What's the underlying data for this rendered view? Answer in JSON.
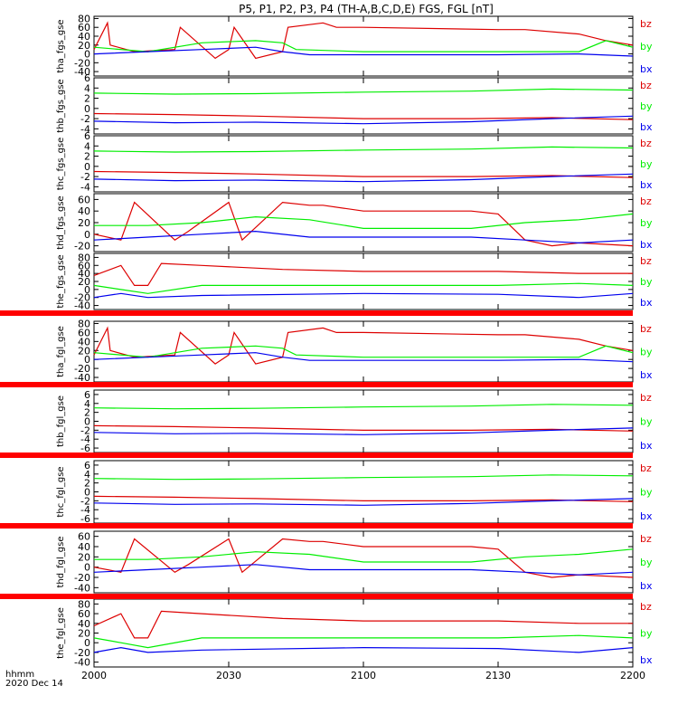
{
  "chart_data": {
    "type": "line",
    "title": "P5, P1, P2, P3, P4 (TH-A,B,C,D,E) FGS, FGL [nT]",
    "x_tick_labels": [
      "2000",
      "2030",
      "2100",
      "2130",
      "2200"
    ],
    "x_time_hours": [
      20.0,
      20.5,
      21.0,
      21.5,
      22.0
    ],
    "xlim_hours": [
      20.0,
      22.0
    ],
    "x_axis_annotation": {
      "line1": "hhmm",
      "line2": "2020 Dec 14"
    },
    "colors": {
      "bz": "#dd0000",
      "by": "#00ee00",
      "bx": "#0000ee",
      "bar": "#ff0000"
    },
    "panels": [
      {
        "ylabel": "tha_fgs_gse",
        "ylim": [
          -50,
          85
        ],
        "yticks": [
          80,
          60,
          40,
          20,
          0,
          -20,
          -40
        ],
        "legend": [
          "bz",
          "by",
          "bx"
        ],
        "series": [
          {
            "name": "bz",
            "x": [
              20.0,
              20.05,
              20.06,
              20.15,
              20.3,
              20.32,
              20.45,
              20.5,
              20.52,
              20.6,
              20.7,
              20.72,
              20.85,
              20.9,
              21.0,
              21.5,
              21.6,
              21.8,
              21.9,
              22.0
            ],
            "y": [
              10,
              70,
              20,
              5,
              10,
              60,
              -10,
              10,
              60,
              -10,
              5,
              60,
              70,
              60,
              60,
              55,
              55,
              45,
              30,
              20
            ]
          },
          {
            "name": "by",
            "x": [
              20.0,
              20.2,
              20.4,
              20.6,
              20.7,
              20.75,
              21.0,
              21.5,
              21.8,
              21.9,
              22.0
            ],
            "y": [
              15,
              5,
              25,
              30,
              25,
              10,
              5,
              5,
              5,
              30,
              15
            ]
          },
          {
            "name": "bx",
            "x": [
              20.0,
              20.2,
              20.4,
              20.6,
              20.7,
              20.8,
              21.0,
              21.5,
              21.8,
              22.0
            ],
            "y": [
              0,
              5,
              10,
              15,
              5,
              -2,
              -2,
              -2,
              0,
              -5
            ]
          }
        ]
      },
      {
        "ylabel": "thb_fgs_gse",
        "ylim": [
          -5,
          6
        ],
        "yticks": [
          6,
          4,
          2,
          0,
          -2,
          -4
        ],
        "legend": [
          "bz",
          "by",
          "bx"
        ],
        "series": [
          {
            "name": "bz",
            "x": [
              20.0,
              20.3,
              20.6,
              21.0,
              21.4,
              21.7,
              22.0
            ],
            "y": [
              -1,
              -1.2,
              -1.5,
              -2,
              -2,
              -1.8,
              -2.2
            ]
          },
          {
            "name": "by",
            "x": [
              20.0,
              20.3,
              20.6,
              21.0,
              21.4,
              21.7,
              22.0
            ],
            "y": [
              3,
              2.8,
              2.9,
              3.2,
              3.4,
              3.8,
              3.6
            ]
          },
          {
            "name": "bx",
            "x": [
              20.0,
              20.3,
              20.6,
              21.0,
              21.4,
              21.7,
              22.0
            ],
            "y": [
              -2.5,
              -2.8,
              -2.7,
              -3,
              -2.6,
              -2,
              -1.5
            ]
          }
        ]
      },
      {
        "ylabel": "thc_fgs_gse",
        "ylim": [
          -5,
          6
        ],
        "yticks": [
          6,
          4,
          2,
          0,
          -2,
          -4
        ],
        "legend": [
          "bz",
          "by",
          "bx"
        ],
        "series": [
          {
            "name": "bz",
            "x": [
              20.0,
              20.3,
              20.6,
              21.0,
              21.4,
              21.7,
              22.0
            ],
            "y": [
              -1,
              -1.2,
              -1.5,
              -2,
              -2,
              -1.8,
              -2.2
            ]
          },
          {
            "name": "by",
            "x": [
              20.0,
              20.3,
              20.6,
              21.0,
              21.4,
              21.7,
              22.0
            ],
            "y": [
              3,
              2.8,
              2.9,
              3.2,
              3.4,
              3.8,
              3.6
            ]
          },
          {
            "name": "bx",
            "x": [
              20.0,
              20.3,
              20.6,
              21.0,
              21.4,
              21.7,
              22.0
            ],
            "y": [
              -2.5,
              -2.8,
              -2.7,
              -3,
              -2.6,
              -2,
              -1.5
            ]
          }
        ]
      },
      {
        "ylabel": "thd_fgs_gse",
        "ylim": [
          -30,
          70
        ],
        "yticks": [
          60,
          40,
          20,
          0,
          -20
        ],
        "legend": [
          "bz",
          "by",
          "bx"
        ],
        "series": [
          {
            "name": "bz",
            "x": [
              20.0,
              20.1,
              20.15,
              20.3,
              20.35,
              20.5,
              20.55,
              20.7,
              20.8,
              20.85,
              21.0,
              21.4,
              21.5,
              21.6,
              21.7,
              21.8,
              22.0
            ],
            "y": [
              0,
              -10,
              55,
              -10,
              5,
              55,
              -10,
              55,
              50,
              50,
              40,
              40,
              35,
              -10,
              -20,
              -15,
              -20
            ]
          },
          {
            "name": "by",
            "x": [
              20.0,
              20.2,
              20.4,
              20.6,
              20.8,
              21.0,
              21.4,
              21.6,
              21.8,
              22.0
            ],
            "y": [
              15,
              15,
              20,
              30,
              25,
              10,
              10,
              20,
              25,
              35
            ]
          },
          {
            "name": "bx",
            "x": [
              20.0,
              20.2,
              20.4,
              20.6,
              20.8,
              21.0,
              21.4,
              21.6,
              21.8,
              22.0
            ],
            "y": [
              -10,
              -5,
              0,
              5,
              -5,
              -5,
              -5,
              -10,
              -15,
              -10
            ]
          }
        ]
      },
      {
        "ylabel": "the_fgs_gse",
        "ylim": [
          -50,
          90
        ],
        "yticks": [
          80,
          60,
          40,
          20,
          0,
          -20,
          -40
        ],
        "legend": [
          "bz",
          "by",
          "bx"
        ],
        "series": [
          {
            "name": "bz",
            "x": [
              20.0,
              20.1,
              20.15,
              20.2,
              20.25,
              20.4,
              20.7,
              21.0,
              21.5,
              21.8,
              22.0
            ],
            "y": [
              35,
              60,
              10,
              10,
              65,
              60,
              50,
              45,
              45,
              40,
              40
            ]
          },
          {
            "name": "by",
            "x": [
              20.0,
              20.1,
              20.2,
              20.4,
              21.0,
              21.5,
              21.8,
              22.0
            ],
            "y": [
              10,
              0,
              -10,
              10,
              10,
              10,
              15,
              10
            ]
          },
          {
            "name": "bx",
            "x": [
              20.0,
              20.1,
              20.2,
              20.4,
              21.0,
              21.5,
              21.8,
              22.0
            ],
            "y": [
              -20,
              -10,
              -20,
              -15,
              -10,
              -12,
              -20,
              -10
            ]
          }
        ]
      },
      {
        "ylabel": "tha_fgl_gse",
        "ylim": [
          -50,
          85
        ],
        "yticks": [
          80,
          60,
          40,
          20,
          0,
          -20,
          -40
        ],
        "legend": [
          "bz",
          "by",
          "bx"
        ],
        "series": [
          {
            "name": "bz",
            "x": [
              20.0,
              20.05,
              20.06,
              20.15,
              20.3,
              20.32,
              20.45,
              20.5,
              20.52,
              20.6,
              20.7,
              20.72,
              20.85,
              20.9,
              21.0,
              21.5,
              21.6,
              21.8,
              21.9,
              22.0
            ],
            "y": [
              10,
              70,
              20,
              5,
              10,
              60,
              -10,
              10,
              60,
              -10,
              5,
              60,
              70,
              60,
              60,
              55,
              55,
              45,
              30,
              20
            ]
          },
          {
            "name": "by",
            "x": [
              20.0,
              20.2,
              20.4,
              20.6,
              20.7,
              20.75,
              21.0,
              21.5,
              21.8,
              21.9,
              22.0
            ],
            "y": [
              15,
              5,
              25,
              30,
              25,
              10,
              5,
              5,
              5,
              30,
              15
            ]
          },
          {
            "name": "bx",
            "x": [
              20.0,
              20.2,
              20.4,
              20.6,
              20.7,
              20.8,
              21.0,
              21.5,
              21.8,
              22.0
            ],
            "y": [
              0,
              5,
              10,
              15,
              5,
              -2,
              -2,
              -2,
              0,
              -5
            ]
          }
        ]
      },
      {
        "ylabel": "thb_fgl_gse",
        "ylim": [
          -7,
          7
        ],
        "yticks": [
          6,
          4,
          2,
          0,
          -2,
          -4,
          -6
        ],
        "legend": [
          "bz",
          "by",
          "bx"
        ],
        "series": [
          {
            "name": "bz",
            "x": [
              20.0,
              20.3,
              20.6,
              21.0,
              21.4,
              21.7,
              22.0
            ],
            "y": [
              -1,
              -1.2,
              -1.5,
              -2,
              -2,
              -1.8,
              -2.2
            ]
          },
          {
            "name": "by",
            "x": [
              20.0,
              20.3,
              20.6,
              21.0,
              21.4,
              21.7,
              22.0
            ],
            "y": [
              3,
              2.8,
              2.9,
              3.2,
              3.4,
              3.8,
              3.6
            ]
          },
          {
            "name": "bx",
            "x": [
              20.0,
              20.3,
              20.6,
              21.0,
              21.4,
              21.7,
              22.0
            ],
            "y": [
              -2.5,
              -2.8,
              -2.7,
              -3,
              -2.6,
              -2,
              -1.5
            ]
          }
        ]
      },
      {
        "ylabel": "thc_fgl_gse",
        "ylim": [
          -7,
          7
        ],
        "yticks": [
          6,
          4,
          2,
          0,
          -2,
          -4,
          -6
        ],
        "legend": [
          "bz",
          "by",
          "bx"
        ],
        "series": [
          {
            "name": "bz",
            "x": [
              20.0,
              20.3,
              20.6,
              21.0,
              21.4,
              21.7,
              22.0
            ],
            "y": [
              -1,
              -1.2,
              -1.5,
              -2,
              -2,
              -1.8,
              -2.2
            ]
          },
          {
            "name": "by",
            "x": [
              20.0,
              20.3,
              20.6,
              21.0,
              21.4,
              21.7,
              22.0
            ],
            "y": [
              3,
              2.8,
              2.9,
              3.2,
              3.4,
              3.8,
              3.6
            ]
          },
          {
            "name": "bx",
            "x": [
              20.0,
              20.3,
              20.6,
              21.0,
              21.4,
              21.7,
              22.0
            ],
            "y": [
              -2.5,
              -2.8,
              -2.7,
              -3,
              -2.6,
              -2,
              -1.5
            ]
          }
        ]
      },
      {
        "ylabel": "thd_fgl_gse",
        "ylim": [
          -50,
          70
        ],
        "yticks": [
          60,
          40,
          20,
          0,
          -20,
          -40
        ],
        "legend": [
          "bz",
          "by",
          "bx"
        ],
        "series": [
          {
            "name": "bz",
            "x": [
              20.0,
              20.1,
              20.15,
              20.3,
              20.35,
              20.5,
              20.55,
              20.7,
              20.8,
              20.85,
              21.0,
              21.4,
              21.5,
              21.6,
              21.7,
              21.8,
              22.0
            ],
            "y": [
              0,
              -10,
              55,
              -10,
              5,
              55,
              -10,
              55,
              50,
              50,
              40,
              40,
              35,
              -10,
              -20,
              -15,
              -20
            ]
          },
          {
            "name": "by",
            "x": [
              20.0,
              20.2,
              20.4,
              20.6,
              20.8,
              21.0,
              21.4,
              21.6,
              21.8,
              22.0
            ],
            "y": [
              15,
              15,
              20,
              30,
              25,
              10,
              10,
              20,
              25,
              35
            ]
          },
          {
            "name": "bx",
            "x": [
              20.0,
              20.2,
              20.4,
              20.6,
              20.8,
              21.0,
              21.4,
              21.6,
              21.8,
              22.0
            ],
            "y": [
              -10,
              -5,
              0,
              5,
              -5,
              -5,
              -5,
              -10,
              -15,
              -10
            ]
          }
        ]
      },
      {
        "ylabel": "the_fgl_gse",
        "ylim": [
          -50,
          90
        ],
        "yticks": [
          80,
          60,
          40,
          20,
          0,
          -20,
          -40
        ],
        "legend": [
          "bz",
          "by",
          "bx"
        ],
        "series": [
          {
            "name": "bz",
            "x": [
              20.0,
              20.1,
              20.15,
              20.2,
              20.25,
              20.4,
              20.7,
              21.0,
              21.5,
              21.8,
              22.0
            ],
            "y": [
              35,
              60,
              10,
              10,
              65,
              60,
              50,
              45,
              45,
              40,
              40
            ]
          },
          {
            "name": "by",
            "x": [
              20.0,
              20.1,
              20.2,
              20.4,
              21.0,
              21.5,
              21.8,
              22.0
            ],
            "y": [
              10,
              0,
              -10,
              10,
              10,
              10,
              15,
              10
            ]
          },
          {
            "name": "bx",
            "x": [
              20.0,
              20.1,
              20.2,
              20.4,
              21.0,
              21.5,
              21.8,
              22.0
            ],
            "y": [
              -20,
              -10,
              -20,
              -15,
              -10,
              -12,
              -20,
              -10
            ]
          }
        ]
      }
    ]
  }
}
